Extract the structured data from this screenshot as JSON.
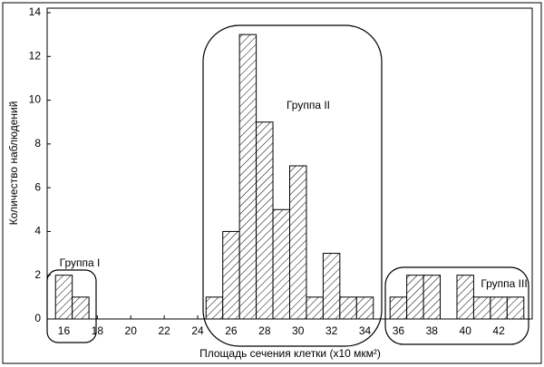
{
  "chart_data": {
    "type": "histogram",
    "xlabel": "Площадь сечения клетки (x10 мкм²)",
    "ylabel": "Количество наблюдений",
    "bins": [
      15.5,
      16.5,
      17.5,
      18.5,
      19.5,
      20.5,
      21.5,
      22.5,
      23.5,
      24.5,
      25.5,
      26.5,
      27.5,
      28.5,
      29.5,
      30.5,
      31.5,
      32.5,
      33.5,
      34.5,
      35.5,
      36.5,
      37.5,
      38.5,
      39.5,
      40.5,
      41.5,
      42.5,
      43.5
    ],
    "values": [
      2,
      1,
      0,
      0,
      0,
      0,
      0,
      0,
      0,
      1,
      4,
      13,
      9,
      5,
      7,
      1,
      3,
      1,
      1,
      0,
      1,
      2,
      2,
      0,
      2,
      1,
      1,
      1
    ],
    "xlim": [
      15,
      44
    ],
    "xticks": [
      16,
      18,
      20,
      22,
      24,
      26,
      28,
      30,
      32,
      34,
      36,
      38,
      40,
      42
    ],
    "ylim": [
      0,
      14
    ],
    "yticks": [
      0,
      2,
      4,
      6,
      8,
      10,
      12,
      14
    ],
    "color": "#000000",
    "hatch": "diagonal",
    "grid": false,
    "annotations": [
      "Группа I",
      "Группа II",
      "Группа III"
    ]
  }
}
